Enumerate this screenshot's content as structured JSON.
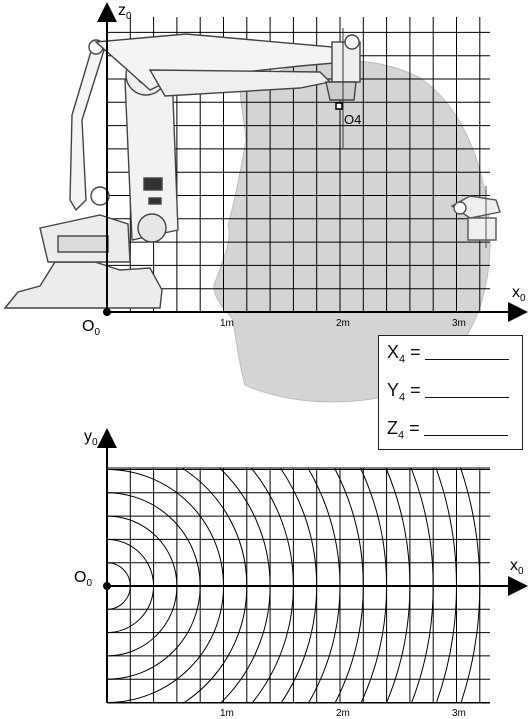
{
  "top_view": {
    "z_axis_label": "z",
    "z_axis_sub": "0",
    "x_axis_label": "x",
    "x_axis_sub": "0",
    "origin_label": "O",
    "origin_sub": "0",
    "point_label": "O4",
    "tick_labels": [
      "1m",
      "2m",
      "3m"
    ]
  },
  "answers": [
    {
      "var": "X",
      "sub": "4",
      "eq": "="
    },
    {
      "var": "Y",
      "sub": "4",
      "eq": "="
    },
    {
      "var": "Z",
      "sub": "4",
      "eq": "="
    }
  ],
  "bottom_view": {
    "y_axis_label": "y",
    "y_axis_sub": "0",
    "x_axis_label": "x",
    "x_axis_sub": "0",
    "origin_label": "O",
    "origin_sub": "0",
    "tick_labels": [
      "1m",
      "2m",
      "3m"
    ]
  },
  "colors": {
    "workspace": "#d4d4d4",
    "robot": "#555555",
    "grid": "#000000"
  }
}
